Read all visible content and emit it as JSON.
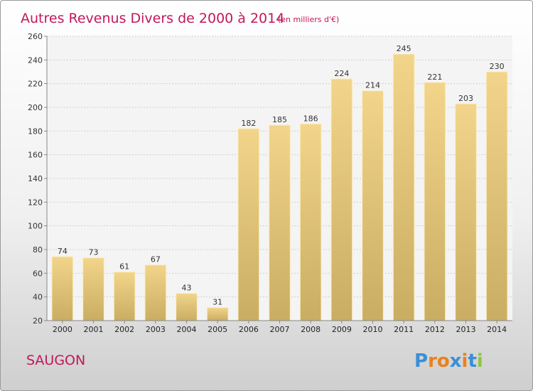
{
  "chart_data": {
    "type": "bar",
    "title": "Autres Revenus Divers de 2000 à 2014",
    "subtitle": "(en milliers d'€)",
    "categories": [
      "2000",
      "2001",
      "2002",
      "2003",
      "2004",
      "2005",
      "2006",
      "2007",
      "2008",
      "2009",
      "2010",
      "2011",
      "2012",
      "2013",
      "2014"
    ],
    "values": [
      74,
      73,
      61,
      67,
      43,
      31,
      182,
      185,
      186,
      224,
      214,
      245,
      221,
      203,
      230
    ],
    "ylim": [
      20,
      260
    ],
    "yticks": [
      20,
      40,
      60,
      80,
      100,
      120,
      140,
      160,
      180,
      200,
      220,
      240,
      260
    ],
    "grid": true,
    "bar_color": "#f2d58a",
    "bar_color_dark": "#c9ad63"
  },
  "footer": {
    "commune": "SAUGON",
    "brand": [
      "P",
      "r",
      "o",
      "x",
      "i",
      "t",
      "i"
    ],
    "brand_colors": [
      "#3a8fd6",
      "#e8821e",
      "#e8821e",
      "#3a8fd6",
      "#e8821e",
      "#3a8fd6",
      "#8dc63f"
    ]
  }
}
